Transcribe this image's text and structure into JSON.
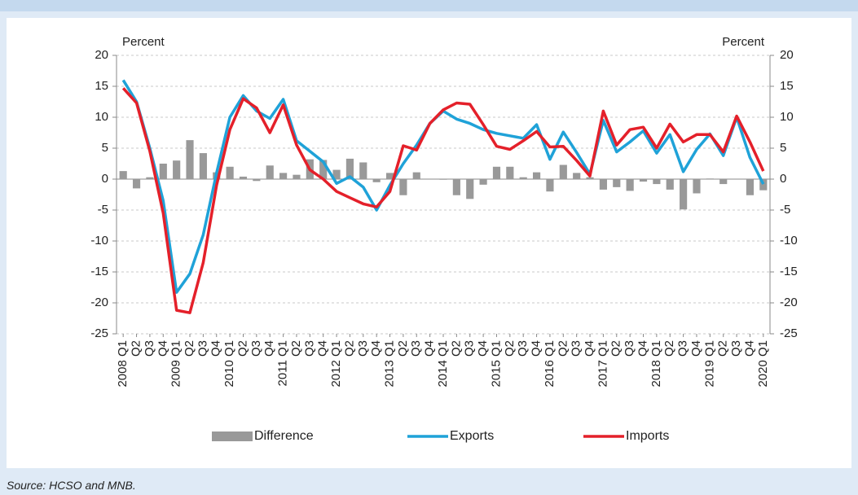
{
  "chart_data": {
    "type": "bar_line",
    "y_label": "Percent",
    "y2_label": "Percent",
    "categories": [
      "2008 Q1",
      "Q2",
      "Q3",
      "Q4",
      "2009 Q1",
      "Q2",
      "Q3",
      "Q4",
      "2010 Q1",
      "Q2",
      "Q3",
      "Q4",
      "2011 Q1",
      "Q2",
      "Q3",
      "Q4",
      "2012 Q1",
      "Q2",
      "Q3",
      "Q4",
      "2013 Q1",
      "Q2",
      "Q3",
      "Q4",
      "2014 Q1",
      "Q2",
      "Q3",
      "Q4",
      "2015 Q1",
      "Q2",
      "Q3",
      "Q4",
      "2016 Q1",
      "Q2",
      "Q3",
      "Q4",
      "2017 Q1",
      "Q2",
      "Q3",
      "Q4",
      "2018 Q1",
      "Q2",
      "Q3",
      "Q4",
      "2019 Q1",
      "Q2",
      "Q3",
      "Q4",
      "2020 Q1"
    ],
    "series": [
      {
        "name": "Difference",
        "kind": "bar",
        "color": "#999999",
        "values": [
          1.3,
          -1.5,
          0.3,
          2.5,
          3,
          6.3,
          4.2,
          1.1,
          2,
          0.4,
          -0.3,
          2.2,
          1,
          0.7,
          3.2,
          3.1,
          1.5,
          3.3,
          2.7,
          -0.5,
          1,
          -2.6,
          1.1,
          0,
          -0.1,
          -2.6,
          -3.2,
          -0.9,
          2,
          2,
          0.3,
          1.1,
          -2,
          2.3,
          1,
          0.3,
          -1.7,
          -1.3,
          -1.9,
          -0.4,
          -0.8,
          -1.7,
          -4.9,
          -2.3,
          0.1,
          -0.8,
          0,
          -2.6,
          -1.8
        ]
      },
      {
        "name": "Exports",
        "kind": "line",
        "color": "#1fa2d8",
        "values": [
          16,
          12.5,
          5,
          -3.5,
          -18.3,
          -15.3,
          -9,
          1,
          10,
          13.5,
          11,
          9.8,
          12.9,
          6.2,
          4.5,
          2.8,
          -0.7,
          0.4,
          -1.3,
          -5,
          -1,
          2.5,
          5.5,
          9,
          11,
          9.7,
          9,
          8,
          7.4,
          7,
          6.6,
          8.8,
          3.2,
          7.6,
          4.3,
          0.8,
          9.5,
          4.4,
          6,
          7.8,
          4.2,
          7.2,
          1.2,
          4.8,
          7.3,
          3.8,
          10,
          3.5,
          -0.8
        ]
      },
      {
        "name": "Imports",
        "kind": "line",
        "color": "#e4202a",
        "values": [
          14.7,
          12.3,
          4.5,
          -5.5,
          -21.2,
          -21.6,
          -13.5,
          -1,
          8,
          13,
          11.5,
          7.5,
          12,
          5.5,
          1.5,
          0,
          -2,
          -3,
          -4,
          -4.5,
          -2,
          5.4,
          4.7,
          9,
          11.2,
          12.3,
          12.1,
          8.8,
          5.3,
          4.8,
          6.2,
          7.7,
          5.2,
          5.3,
          3,
          0.5,
          11,
          5.5,
          8,
          8.4,
          5,
          8.9,
          6,
          7.2,
          7.2,
          4.4,
          10.2,
          6,
          1.3
        ]
      }
    ],
    "ylim": [
      -25,
      20
    ],
    "yticks": [
      -25,
      -20,
      -15,
      -10,
      -5,
      0,
      5,
      10,
      15,
      20
    ],
    "y2lim": [
      -25,
      20
    ],
    "y2ticks": [
      -25,
      -20,
      -15,
      -10,
      -5,
      0,
      5,
      10,
      15,
      20
    ],
    "grid": true,
    "legend": "bottom"
  },
  "source": "Source: HCSO and MNB."
}
